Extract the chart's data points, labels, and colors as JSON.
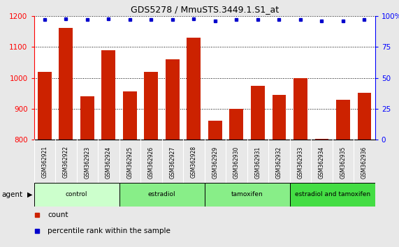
{
  "title": "GDS5278 / MmuSTS.3449.1.S1_at",
  "samples": [
    "GSM362921",
    "GSM362922",
    "GSM362923",
    "GSM362924",
    "GSM362925",
    "GSM362926",
    "GSM362927",
    "GSM362928",
    "GSM362929",
    "GSM362930",
    "GSM362931",
    "GSM362932",
    "GSM362933",
    "GSM362934",
    "GSM362935",
    "GSM362936"
  ],
  "counts": [
    1020,
    1162,
    940,
    1090,
    955,
    1020,
    1060,
    1130,
    860,
    900,
    975,
    945,
    1000,
    802,
    928,
    952
  ],
  "percentiles": [
    97,
    98,
    97,
    98,
    97,
    97,
    97,
    98,
    96,
    97,
    97,
    97,
    97,
    96,
    96,
    97
  ],
  "ylim_left": [
    800,
    1200
  ],
  "ylim_right": [
    0,
    100
  ],
  "yticks_left": [
    800,
    900,
    1000,
    1100,
    1200
  ],
  "yticks_right": [
    0,
    25,
    50,
    75,
    100
  ],
  "bar_color": "#cc2200",
  "dot_color": "#0000cc",
  "bar_width": 0.65,
  "group_boundaries": [
    [
      0,
      4,
      "control",
      "#ccffcc"
    ],
    [
      4,
      8,
      "estradiol",
      "#88ee88"
    ],
    [
      8,
      12,
      "tamoxifen",
      "#88ee88"
    ],
    [
      12,
      16,
      "estradiol and tamoxifen",
      "#44dd44"
    ]
  ],
  "bg_color": "#e8e8e8",
  "plot_bg": "#ffffff",
  "tick_area_color": "#cccccc"
}
